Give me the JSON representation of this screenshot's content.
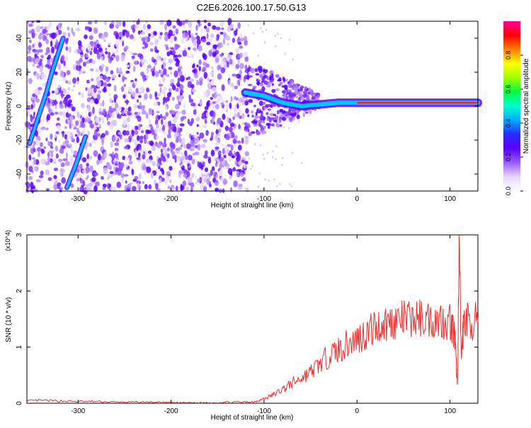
{
  "title": "C2E6.2026.100.17.50.G13",
  "chart_data": [
    {
      "type": "heatmap",
      "xlabel": "Height of straight line (km)",
      "ylabel": "Frequency (Hz)",
      "xlim": [
        -355,
        130
      ],
      "ylim": [
        -50,
        50
      ],
      "x_ticks": [
        -300,
        -200,
        -100,
        0,
        100
      ],
      "y_ticks": [
        -40,
        -20,
        0,
        20,
        40
      ],
      "colorbar": {
        "label": "Normalized spectral amplitude",
        "range": [
          0,
          1
        ],
        "ticks": [
          0.0,
          0.2,
          0.4,
          0.6,
          0.8
        ],
        "colors": [
          "#ffffff",
          "#e6d6ff",
          "#9a5cff",
          "#5a00ff",
          "#2a2aff",
          "#00aaff",
          "#00ffd0",
          "#00ff40",
          "#a0ff00",
          "#ffff00",
          "#ff8000",
          "#ff0000",
          "#ff00a0"
        ]
      },
      "ridges": [
        {
          "label": "",
          "x": [
            -352,
            -346,
            -340,
            -334,
            -328,
            -322,
            -316
          ],
          "y": [
            -22,
            -12,
            -2,
            8,
            20,
            30,
            40
          ]
        },
        {
          "label": "",
          "x": [
            -312,
            -302,
            -292
          ],
          "y": [
            -48,
            -34,
            -18
          ]
        },
        {
          "label": "",
          "x": [
            -120,
            -100,
            -80,
            -60,
            -40,
            -20,
            0,
            20,
            50,
            80,
            110,
            130
          ],
          "y": [
            8,
            6,
            2,
            0,
            1,
            2,
            2,
            2,
            2,
            2,
            2,
            2
          ]
        }
      ]
    },
    {
      "type": "line",
      "xlabel": "Height of straight line (km)",
      "ylabel": "SNR (10 * v/v)",
      "y_multiplier": "(x10^4)",
      "xlim": [
        -355,
        130
      ],
      "ylim": [
        0,
        3
      ],
      "x_ticks": [
        -300,
        -200,
        -100,
        0,
        100
      ],
      "y_ticks": [
        0,
        1,
        2,
        3
      ],
      "series": [
        {
          "color": "#e83030",
          "x": [
            -355,
            -340,
            -320,
            -300,
            -280,
            -260,
            -240,
            -220,
            -200,
            -180,
            -160,
            -140,
            -120,
            -110,
            -100,
            -90,
            -80,
            -70,
            -60,
            -50,
            -40,
            -30,
            -20,
            -10,
            0,
            10,
            20,
            30,
            40,
            50,
            60,
            70,
            80,
            90,
            100,
            105,
            108,
            110,
            112,
            115,
            120,
            130
          ],
          "y": [
            0.04,
            0.05,
            0.04,
            0.03,
            0.03,
            0.02,
            0.02,
            0.02,
            0.01,
            0.01,
            0.01,
            0.02,
            0.02,
            0.03,
            0.08,
            0.15,
            0.25,
            0.35,
            0.45,
            0.55,
            0.7,
            0.85,
            0.95,
            1.05,
            1.15,
            1.25,
            1.35,
            1.42,
            1.47,
            1.49,
            1.5,
            1.52,
            1.5,
            1.48,
            1.47,
            1.2,
            0.3,
            2.9,
            0.8,
            1.5,
            1.48,
            1.45
          ]
        }
      ]
    }
  ]
}
